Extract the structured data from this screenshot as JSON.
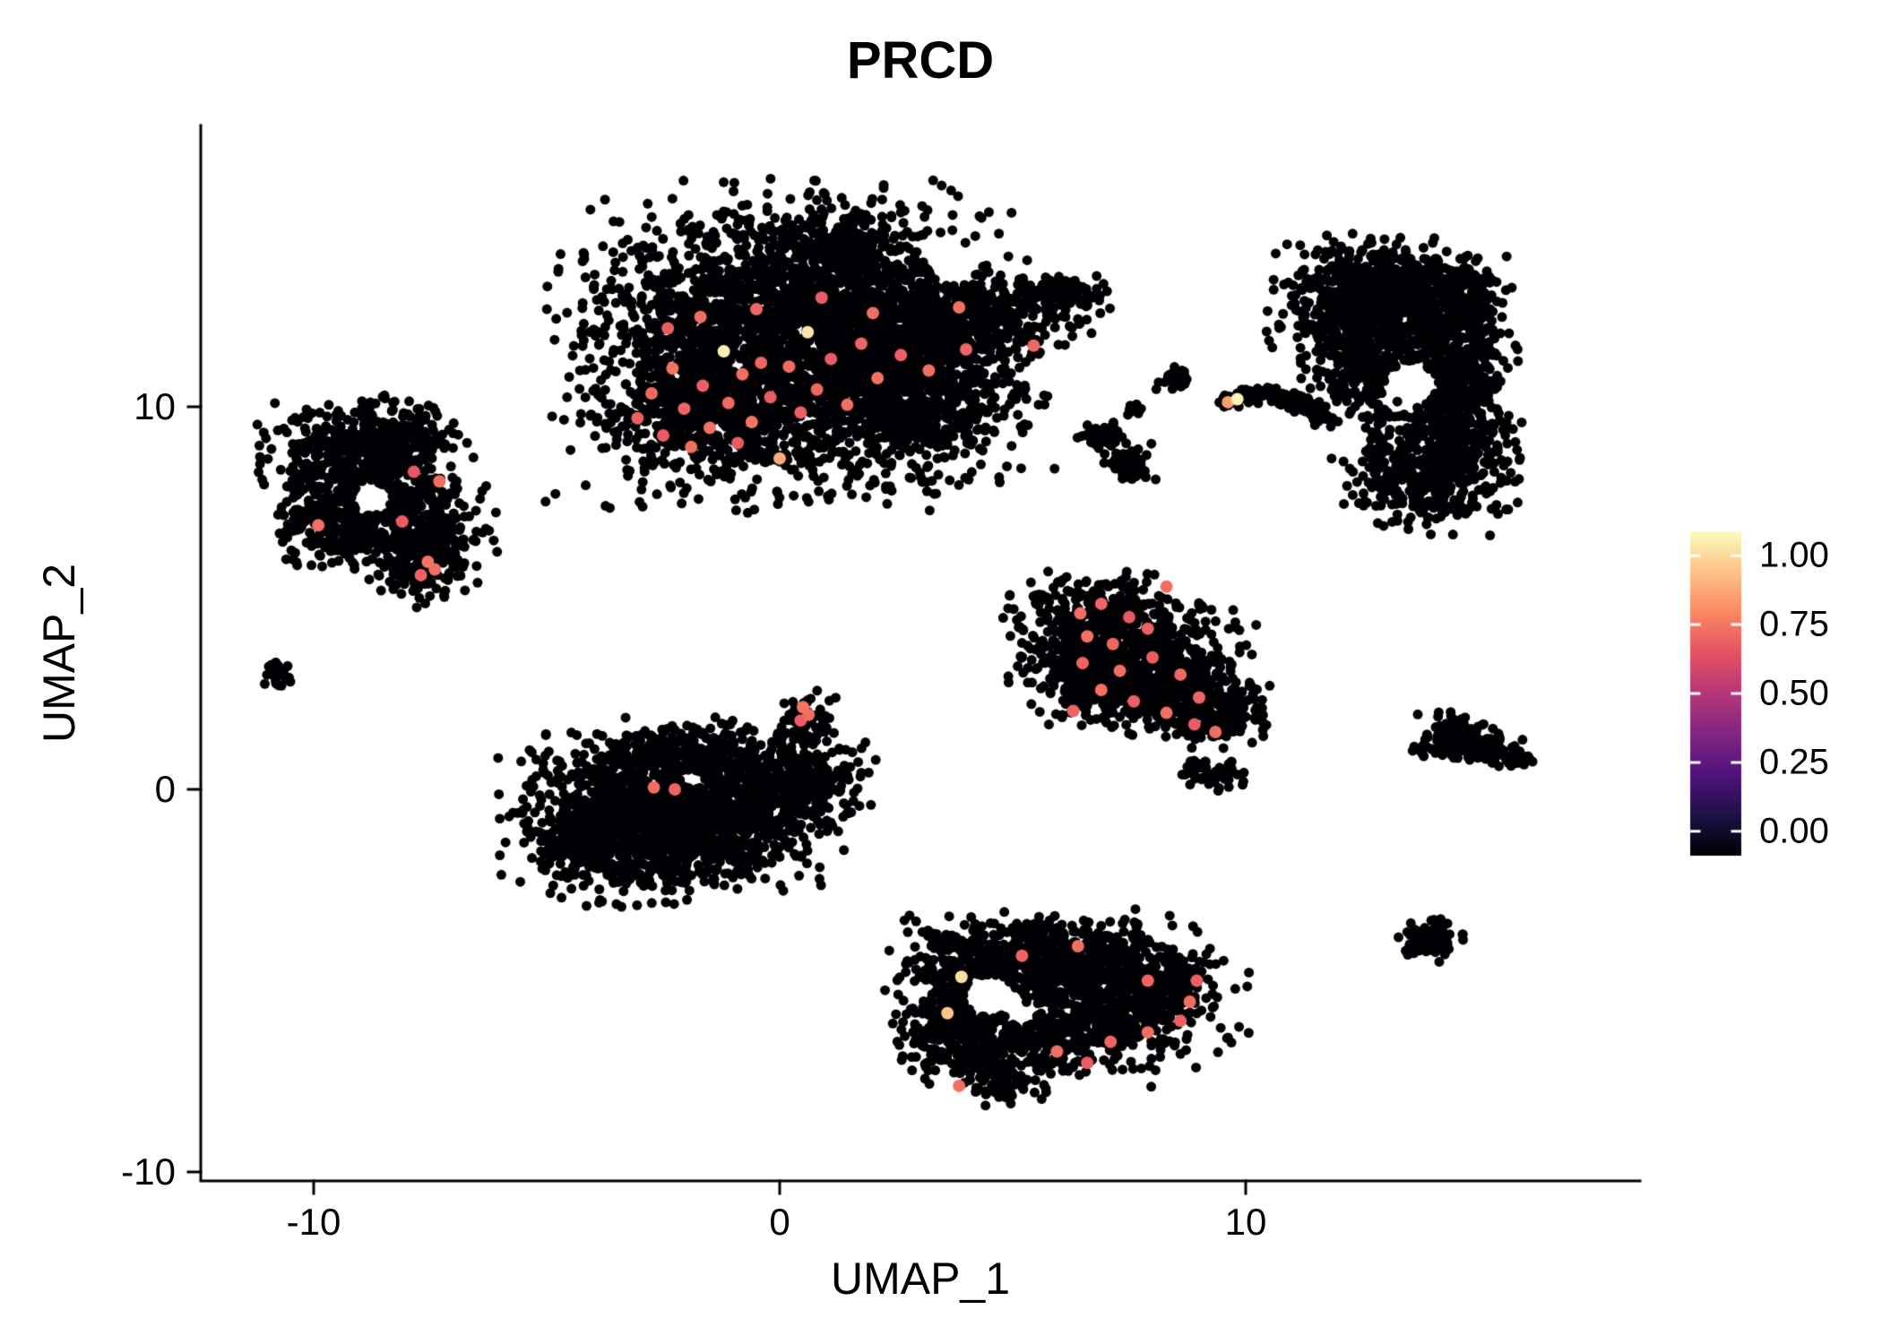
{
  "figure": {
    "title": "PRCD"
  },
  "colors": {
    "background": "#FFFFFF",
    "axis": "#000000",
    "text": "#000000",
    "point_base": "#000004",
    "legend_tick": "#FFFFFF"
  },
  "chart_data": {
    "type": "scatter",
    "title": "PRCD",
    "xlabel": "UMAP_1",
    "ylabel": "UMAP_2",
    "xlim": [
      -12.4,
      18.5
    ],
    "ylim": [
      -10.3,
      17.3
    ],
    "x_tick_values": [
      -10,
      0,
      10
    ],
    "x_tick_labels": [
      "-10",
      "0",
      "10"
    ],
    "y_tick_values": [
      -10,
      0,
      10
    ],
    "y_tick_labels": [
      "-10",
      "0",
      "10"
    ],
    "grid": false,
    "legend_position": "right",
    "colorbar": {
      "range": [
        0,
        1
      ],
      "breaks": [
        0,
        0.25,
        0.5,
        0.75,
        1
      ],
      "labels": [
        "0.00",
        "0.25",
        "0.50",
        "0.75",
        "1.00"
      ],
      "palette": "magma",
      "stops": [
        [
          0,
          "#000004"
        ],
        [
          0.125,
          "#1D1147"
        ],
        [
          0.25,
          "#51127C"
        ],
        [
          0.375,
          "#822681"
        ],
        [
          0.5,
          "#B63679"
        ],
        [
          0.625,
          "#E65164"
        ],
        [
          0.75,
          "#FB8861"
        ],
        [
          0.875,
          "#FEC287"
        ],
        [
          1,
          "#FCFDBF"
        ]
      ]
    },
    "seed": 20240613,
    "point_radius_px": 5.5,
    "highlight_radius_px": 7,
    "clusters": [
      {
        "name": "top-center",
        "blobs": [
          [
            0.2,
            11.6,
            2.1,
            1.75,
            2800
          ],
          [
            2.9,
            10.9,
            1.2,
            1.2,
            900
          ],
          [
            4.6,
            12.4,
            0.9,
            0.45,
            300
          ],
          [
            6.0,
            12.95,
            0.5,
            0.22,
            110
          ],
          [
            -1.6,
            9.9,
            1.1,
            0.8,
            400
          ],
          [
            1.2,
            14.1,
            0.9,
            0.5,
            260
          ]
        ],
        "voids": [
          [
            0.0,
            8.15,
            0.3
          ],
          [
            3.7,
            13.8,
            0.55
          ]
        ]
      },
      {
        "name": "left",
        "blobs": [
          [
            -9.2,
            8.5,
            0.85,
            0.75,
            420
          ],
          [
            -7.9,
            7.0,
            0.75,
            0.85,
            380
          ],
          [
            -9.6,
            6.9,
            0.55,
            0.55,
            200
          ],
          [
            -8.3,
            9.3,
            0.7,
            0.4,
            160
          ],
          [
            -7.6,
            6.0,
            0.45,
            0.5,
            140
          ]
        ],
        "voids": [
          [
            -8.75,
            7.6,
            0.42
          ]
        ]
      },
      {
        "name": "tiny-left",
        "blobs": [
          [
            -10.75,
            3.0,
            0.14,
            0.18,
            26
          ]
        ],
        "voids": []
      },
      {
        "name": "center-left",
        "blobs": [
          [
            -3.2,
            -0.7,
            1.15,
            0.95,
            900
          ],
          [
            -1.3,
            -0.6,
            1.15,
            0.9,
            820
          ],
          [
            0.3,
            0.2,
            0.75,
            0.6,
            260
          ],
          [
            -2.0,
            0.9,
            0.9,
            0.4,
            210
          ],
          [
            0.55,
            1.75,
            0.28,
            0.4,
            70
          ],
          [
            -4.2,
            -1.4,
            0.5,
            0.5,
            160
          ]
        ],
        "voids": [
          [
            -1.9,
            0.3,
            0.22
          ]
        ]
      },
      {
        "name": "middle",
        "blobs": [
          [
            7.0,
            4.5,
            0.85,
            0.5,
            300
          ],
          [
            7.5,
            3.5,
            1.1,
            0.65,
            430
          ],
          [
            8.3,
            2.6,
            0.9,
            0.5,
            280
          ],
          [
            9.3,
            1.9,
            0.55,
            0.35,
            150
          ],
          [
            6.6,
            2.8,
            0.5,
            0.55,
            160
          ],
          [
            9.3,
            0.45,
            0.3,
            0.2,
            55
          ]
        ],
        "voids": []
      },
      {
        "name": "bottom-center",
        "blobs": [
          [
            4.6,
            -4.4,
            1.0,
            0.5,
            300
          ],
          [
            6.3,
            -4.5,
            1.2,
            0.55,
            400
          ],
          [
            7.6,
            -5.5,
            1.0,
            0.75,
            420
          ],
          [
            5.6,
            -6.4,
            1.3,
            0.6,
            430
          ],
          [
            3.9,
            -6.0,
            0.6,
            0.7,
            260
          ],
          [
            4.8,
            -7.5,
            0.45,
            0.4,
            110
          ]
        ],
        "voids": [
          [
            4.5,
            -5.4,
            0.55
          ],
          [
            5.2,
            -5.9,
            0.3
          ]
        ]
      },
      {
        "name": "right",
        "blobs": [
          [
            12.4,
            12.4,
            0.8,
            0.85,
            450
          ],
          [
            13.5,
            13.2,
            0.9,
            0.5,
            320
          ],
          [
            14.5,
            11.7,
            0.55,
            0.95,
            360
          ],
          [
            14.5,
            9.7,
            0.6,
            0.95,
            320
          ],
          [
            13.9,
            8.2,
            0.8,
            0.65,
            300
          ],
          [
            12.7,
            11.2,
            0.6,
            0.9,
            240
          ],
          [
            13.7,
            10.4,
            0.9,
            1.4,
            170
          ]
        ],
        "voids": [
          [
            13.55,
            10.6,
            0.55
          ]
        ]
      },
      {
        "name": "small-mid-blobs",
        "blobs": [
          [
            6.85,
            9.3,
            0.24,
            0.16,
            40
          ],
          [
            7.35,
            8.6,
            0.3,
            0.26,
            55
          ],
          [
            7.6,
            9.95,
            0.12,
            0.1,
            14
          ],
          [
            8.5,
            10.7,
            0.18,
            0.14,
            26
          ]
        ],
        "voids": []
      },
      {
        "name": "streak",
        "blobs": [
          [
            9.7,
            10.15,
            0.12,
            0.1,
            25
          ],
          [
            10.1,
            10.3,
            0.15,
            0.1,
            30
          ],
          [
            10.5,
            10.35,
            0.15,
            0.1,
            30
          ],
          [
            10.9,
            10.2,
            0.15,
            0.1,
            28
          ],
          [
            11.3,
            10.0,
            0.15,
            0.12,
            28
          ],
          [
            11.6,
            9.8,
            0.12,
            0.1,
            20
          ]
        ],
        "voids": []
      },
      {
        "name": "small-right",
        "blobs": [
          [
            14.5,
            1.35,
            0.4,
            0.28,
            130
          ],
          [
            15.2,
            1.05,
            0.35,
            0.18,
            70
          ],
          [
            15.75,
            0.8,
            0.2,
            0.12,
            30
          ]
        ],
        "voids": []
      },
      {
        "name": "small-bottom-right",
        "blobs": [
          [
            13.95,
            -3.9,
            0.3,
            0.27,
            90
          ]
        ],
        "voids": []
      }
    ],
    "highlights": [
      [
        -3.05,
        9.7,
        0.66
      ],
      [
        -2.75,
        10.35,
        0.68
      ],
      [
        -2.5,
        9.25,
        0.65
      ],
      [
        -2.3,
        11.0,
        0.7
      ],
      [
        -2.05,
        9.95,
        0.67
      ],
      [
        -1.9,
        8.95,
        0.69
      ],
      [
        -1.65,
        10.55,
        0.66
      ],
      [
        -1.5,
        9.45,
        0.7
      ],
      [
        -1.2,
        11.45,
        0.97
      ],
      [
        -1.1,
        10.1,
        0.68
      ],
      [
        -0.9,
        9.05,
        0.65
      ],
      [
        -0.8,
        10.85,
        0.69
      ],
      [
        -0.6,
        9.6,
        0.71
      ],
      [
        -0.4,
        11.15,
        0.67
      ],
      [
        -0.2,
        10.25,
        0.65
      ],
      [
        0.0,
        8.65,
        0.82
      ],
      [
        0.2,
        11.05,
        0.69
      ],
      [
        0.45,
        9.85,
        0.66
      ],
      [
        0.6,
        11.95,
        0.95
      ],
      [
        0.8,
        10.45,
        0.68
      ],
      [
        1.1,
        11.25,
        0.65
      ],
      [
        1.45,
        10.05,
        0.69
      ],
      [
        1.75,
        11.65,
        0.67
      ],
      [
        2.1,
        10.75,
        0.7
      ],
      [
        2.6,
        11.35,
        0.66
      ],
      [
        3.2,
        10.95,
        0.69
      ],
      [
        4.0,
        11.5,
        0.67
      ],
      [
        -2.4,
        12.05,
        0.65
      ],
      [
        -1.7,
        12.35,
        0.69
      ],
      [
        -0.5,
        12.55,
        0.67
      ],
      [
        0.9,
        12.85,
        0.65
      ],
      [
        2.0,
        12.45,
        0.69
      ],
      [
        3.85,
        12.6,
        0.7
      ],
      [
        5.45,
        11.6,
        0.68
      ],
      [
        -9.9,
        6.9,
        0.69
      ],
      [
        -8.1,
        7.0,
        0.65
      ],
      [
        -7.3,
        8.05,
        0.69
      ],
      [
        -7.85,
        8.3,
        0.64
      ],
      [
        -7.55,
        5.95,
        0.71
      ],
      [
        -7.4,
        5.75,
        0.69
      ],
      [
        -7.7,
        5.6,
        0.67
      ],
      [
        -2.7,
        0.05,
        0.69
      ],
      [
        -2.25,
        0.0,
        0.67
      ],
      [
        0.5,
        2.15,
        0.71
      ],
      [
        0.62,
        1.95,
        0.69
      ],
      [
        0.45,
        1.8,
        0.65
      ],
      [
        6.45,
        4.6,
        0.69
      ],
      [
        6.9,
        4.85,
        0.67
      ],
      [
        7.5,
        4.5,
        0.65
      ],
      [
        6.6,
        4.0,
        0.7
      ],
      [
        7.15,
        3.8,
        0.68
      ],
      [
        7.9,
        4.2,
        0.66
      ],
      [
        8.3,
        5.3,
        0.69
      ],
      [
        6.5,
        3.3,
        0.67
      ],
      [
        7.3,
        3.1,
        0.69
      ],
      [
        8.0,
        3.45,
        0.65
      ],
      [
        8.6,
        3.0,
        0.68
      ],
      [
        6.9,
        2.6,
        0.7
      ],
      [
        7.6,
        2.3,
        0.66
      ],
      [
        8.3,
        2.0,
        0.69
      ],
      [
        9.0,
        2.4,
        0.67
      ],
      [
        8.9,
        1.7,
        0.65
      ],
      [
        9.35,
        1.5,
        0.69
      ],
      [
        6.3,
        2.05,
        0.67
      ],
      [
        6.4,
        -4.1,
        0.69
      ],
      [
        7.9,
        -5.0,
        0.67
      ],
      [
        8.8,
        -5.55,
        0.69
      ],
      [
        8.6,
        -6.05,
        0.66
      ],
      [
        7.9,
        -6.35,
        0.69
      ],
      [
        7.1,
        -6.6,
        0.67
      ],
      [
        6.6,
        -7.15,
        0.65
      ],
      [
        5.95,
        -6.85,
        0.69
      ],
      [
        5.2,
        -4.35,
        0.67
      ],
      [
        3.9,
        -4.9,
        0.94
      ],
      [
        3.6,
        -5.85,
        0.88
      ],
      [
        3.85,
        -7.75,
        0.69
      ],
      [
        8.95,
        -5.0,
        0.66
      ],
      [
        9.62,
        10.12,
        0.8
      ],
      [
        9.82,
        10.2,
        0.98
      ]
    ]
  }
}
